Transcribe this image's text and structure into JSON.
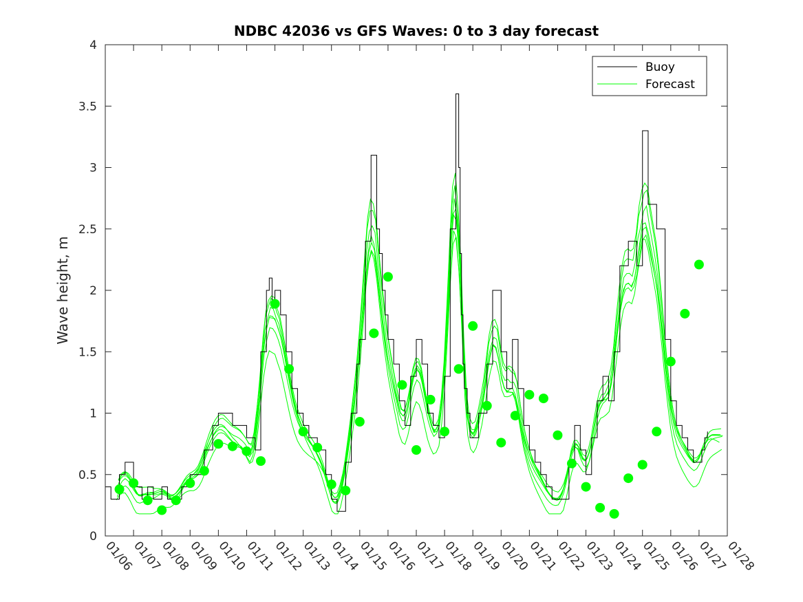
{
  "chart_data": {
    "type": "line",
    "title": "NDBC 42036 vs GFS Waves: 0 to 3 day forecast",
    "xlabel": "",
    "ylabel": "Wave height, m",
    "ylim": [
      0,
      4
    ],
    "xlim": [
      0,
      22
    ],
    "y_ticks": [
      0,
      0.5,
      1,
      1.5,
      2,
      2.5,
      3,
      3.5,
      4
    ],
    "y_tick_labels": [
      "0",
      "0.5",
      "1",
      "1.5",
      "2",
      "2.5",
      "3",
      "3.5",
      "4"
    ],
    "x_ticks": [
      0,
      1,
      2,
      3,
      4,
      5,
      6,
      7,
      8,
      9,
      10,
      11,
      12,
      13,
      14,
      15,
      16,
      17,
      18,
      19,
      20,
      21,
      22
    ],
    "x_tick_labels": [
      "01/06",
      "01/07",
      "01/08",
      "01/09",
      "01/10",
      "01/11",
      "01/12",
      "01/13",
      "01/14",
      "01/15",
      "01/16",
      "01/17",
      "01/18",
      "01/19",
      "01/20",
      "01/21",
      "01/22",
      "01/23",
      "01/24",
      "01/25",
      "01/26",
      "01/27",
      "01/28"
    ],
    "legend": {
      "position": "top-right",
      "entries": [
        "Buoy",
        "Forecast"
      ]
    },
    "colors": {
      "buoy": "#000000",
      "forecast": "#00ff00",
      "axis": "#262626"
    },
    "series": [
      {
        "name": "Buoy",
        "x": [
          0,
          0.2,
          0.5,
          0.7,
          1.0,
          1.3,
          1.5,
          1.7,
          2.0,
          2.2,
          2.5,
          2.7,
          3.0,
          3.3,
          3.5,
          3.8,
          4.0,
          4.2,
          4.5,
          4.8,
          5.0,
          5.3,
          5.5,
          5.7,
          5.8,
          5.9,
          6.0,
          6.2,
          6.4,
          6.6,
          6.8,
          7.0,
          7.2,
          7.5,
          7.8,
          8.0,
          8.2,
          8.5,
          8.7,
          8.9,
          9.0,
          9.2,
          9.4,
          9.6,
          9.7,
          9.8,
          9.9,
          10.0,
          10.2,
          10.4,
          10.6,
          10.8,
          11.0,
          11.2,
          11.4,
          11.6,
          11.8,
          12.0,
          12.2,
          12.4,
          12.5,
          12.55,
          12.6,
          12.65,
          12.7,
          12.8,
          12.9,
          13.0,
          13.2,
          13.5,
          13.7,
          14.0,
          14.2,
          14.4,
          14.6,
          14.8,
          15.0,
          15.2,
          15.4,
          15.6,
          15.8,
          16.0,
          16.2,
          16.4,
          16.6,
          16.8,
          17.0,
          17.2,
          17.4,
          17.6,
          17.8,
          18.0,
          18.2,
          18.5,
          18.8,
          19.0,
          19.2,
          19.5,
          19.8,
          20.0,
          20.2,
          20.4,
          20.6,
          20.8,
          20.9,
          21.0,
          21.1,
          21.2,
          21.3
        ],
        "values": [
          0.4,
          0.3,
          0.5,
          0.6,
          0.4,
          0.3,
          0.4,
          0.3,
          0.4,
          0.3,
          0.3,
          0.4,
          0.5,
          0.5,
          0.7,
          0.9,
          1.0,
          1.0,
          0.9,
          0.9,
          0.8,
          0.7,
          1.5,
          2.0,
          2.1,
          1.9,
          2.0,
          1.8,
          1.5,
          1.2,
          1.0,
          0.9,
          0.8,
          0.7,
          0.5,
          0.3,
          0.2,
          0.6,
          1.0,
          1.4,
          1.6,
          2.4,
          3.1,
          2.5,
          2.3,
          2.0,
          1.8,
          1.6,
          1.4,
          1.1,
          0.9,
          1.3,
          1.6,
          1.4,
          1.0,
          0.9,
          0.8,
          1.3,
          2.5,
          3.6,
          3.0,
          2.3,
          1.8,
          1.4,
          1.2,
          1.0,
          0.8,
          0.8,
          1.0,
          1.4,
          2.0,
          1.5,
          1.2,
          1.6,
          1.2,
          0.9,
          0.7,
          0.6,
          0.5,
          0.4,
          0.3,
          0.3,
          0.3,
          0.6,
          0.9,
          0.7,
          0.5,
          0.8,
          1.1,
          1.3,
          1.1,
          1.5,
          2.2,
          2.4,
          2.2,
          3.3,
          2.7,
          2.5,
          1.6,
          1.1,
          0.9,
          0.8,
          0.7,
          0.6,
          0.6,
          0.6,
          0.7,
          0.8,
          0.85
        ]
      },
      {
        "name": "Forecast",
        "markers_x": [
          0.5,
          1,
          1.5,
          2,
          2.5,
          3,
          3.5,
          4,
          4.5,
          5,
          5.5,
          6,
          6.5,
          7,
          7.5,
          8,
          8.5,
          9,
          9.5,
          10,
          10.5,
          11,
          11.5,
          12,
          12.5,
          13,
          13.5,
          14,
          14.5,
          15,
          15.5,
          16,
          16.5,
          17,
          17.5,
          18,
          18.5,
          19,
          19.5,
          20,
          20.5,
          21
        ],
        "values": [
          0.38,
          0.43,
          0.29,
          0.21,
          0.29,
          0.43,
          0.53,
          0.75,
          0.73,
          0.69,
          0.61,
          1.89,
          1.36,
          0.85,
          0.72,
          0.42,
          0.37,
          0.93,
          1.65,
          2.11,
          1.23,
          0.7,
          1.11,
          0.85,
          1.36,
          1.71,
          1.06,
          0.76,
          0.98,
          1.15,
          1.12,
          0.82,
          0.59,
          0.4,
          0.23,
          0.18,
          0.47,
          0.58,
          0.85,
          1.42,
          1.81,
          2.21
        ]
      }
    ]
  }
}
